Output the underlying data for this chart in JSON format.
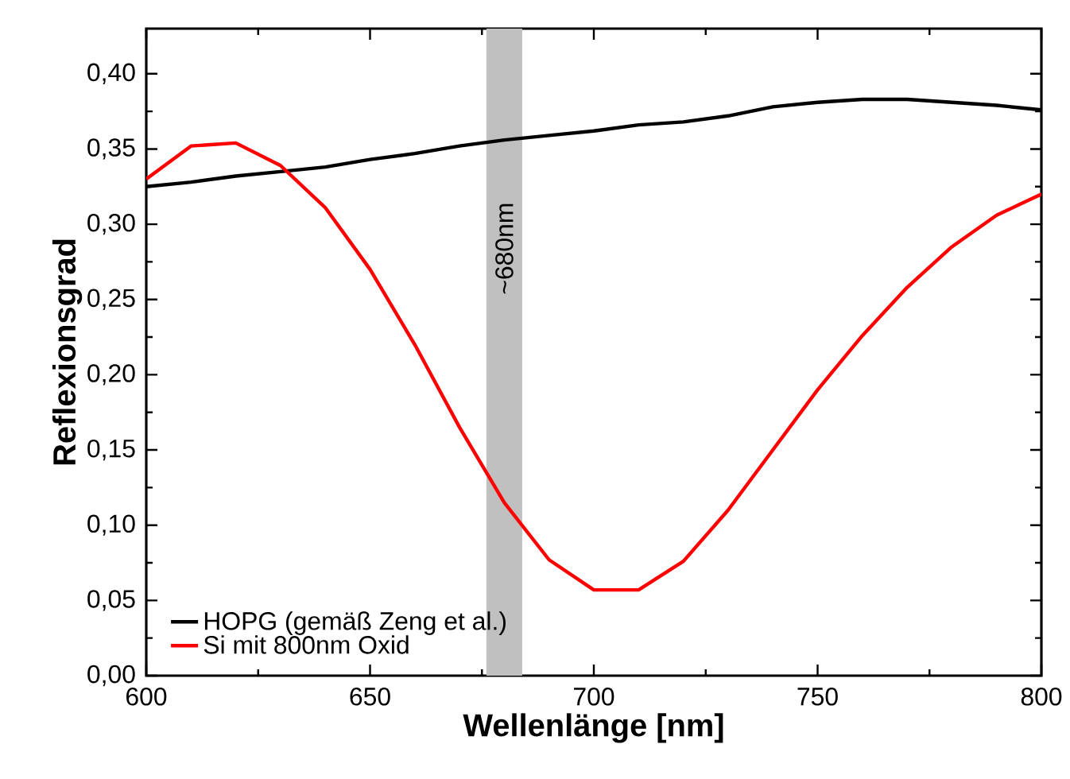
{
  "chart_data": {
    "type": "line",
    "xlabel": "Wellenlänge [nm]",
    "ylabel": "Reflexionsgrad",
    "x": [
      600,
      610,
      620,
      630,
      640,
      650,
      660,
      670,
      680,
      690,
      700,
      710,
      720,
      730,
      740,
      750,
      760,
      770,
      780,
      790,
      800
    ],
    "series": [
      {
        "name": "HOPG (gemäß Zeng et al.)",
        "color": "#000000",
        "values": [
          0.325,
          0.328,
          0.332,
          0.335,
          0.338,
          0.343,
          0.347,
          0.352,
          0.356,
          0.359,
          0.362,
          0.366,
          0.368,
          0.372,
          0.378,
          0.381,
          0.383,
          0.383,
          0.381,
          0.379,
          0.376
        ]
      },
      {
        "name": "Si mit 800nm Oxid",
        "color": "#ff0000",
        "values": [
          0.33,
          0.352,
          0.354,
          0.339,
          0.311,
          0.27,
          0.22,
          0.165,
          0.115,
          0.077,
          0.057,
          0.057,
          0.076,
          0.11,
          0.15,
          0.19,
          0.226,
          0.258,
          0.285,
          0.306,
          0.32
        ]
      }
    ],
    "xlim": [
      600,
      800
    ],
    "ylim": [
      0,
      0.43
    ],
    "xticks": [
      600,
      650,
      700,
      750,
      800
    ],
    "yticks": [
      {
        "value": 0,
        "label": "0,00"
      },
      {
        "value": 0.05,
        "label": "0,05"
      },
      {
        "value": 0.1,
        "label": "0,10"
      },
      {
        "value": 0.15,
        "label": "0,15"
      },
      {
        "value": 0.2,
        "label": "0,20"
      },
      {
        "value": 0.25,
        "label": "0,25"
      },
      {
        "value": 0.3,
        "label": "0,30"
      },
      {
        "value": 0.35,
        "label": "0,35"
      },
      {
        "value": 0.4,
        "label": "0,40"
      }
    ],
    "bands": [
      {
        "axis": "x",
        "from": 676,
        "to": 684,
        "label": "~680nm",
        "color": "#c0c0c0"
      }
    ],
    "legend": "bottom left",
    "grid": false,
    "marker": "none",
    "line_style": "solid"
  }
}
